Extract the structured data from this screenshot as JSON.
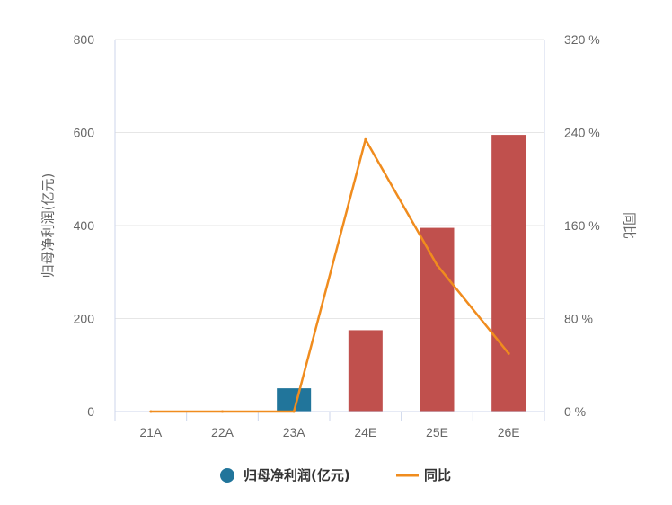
{
  "chart_data": {
    "type": "bar",
    "categories": [
      "21A",
      "22A",
      "23A",
      "24E",
      "25E",
      "26E"
    ],
    "series": [
      {
        "name": "归母净利润(亿元)",
        "type": "bar",
        "axis": "left",
        "values": [
          0,
          0,
          50,
          175,
          395,
          595
        ],
        "point_colors": [
          "#21759b",
          "#21759b",
          "#21759b",
          "#c0504d",
          "#c0504d",
          "#c0504d"
        ]
      },
      {
        "name": "同比",
        "type": "line",
        "axis": "right",
        "values": [
          0,
          0,
          0,
          234,
          126,
          50
        ],
        "color": "#f08c1e"
      }
    ],
    "y_left": {
      "label": "归母净利润(亿元)",
      "ticks": [
        "0",
        "200",
        "400",
        "600",
        "800"
      ],
      "ylim": [
        0,
        800
      ]
    },
    "y_right": {
      "label": "同比",
      "ticks": [
        "0 %",
        "80 %",
        "160 %",
        "240 %",
        "320 %"
      ],
      "ylim": [
        0,
        320
      ]
    },
    "grid": true,
    "legend_position": "bottom-center",
    "legend": [
      {
        "label": "归母净利润(亿元)",
        "marker": "circle",
        "color": "#21759b"
      },
      {
        "label": "同比",
        "marker": "line",
        "color": "#f08c1e"
      }
    ]
  }
}
